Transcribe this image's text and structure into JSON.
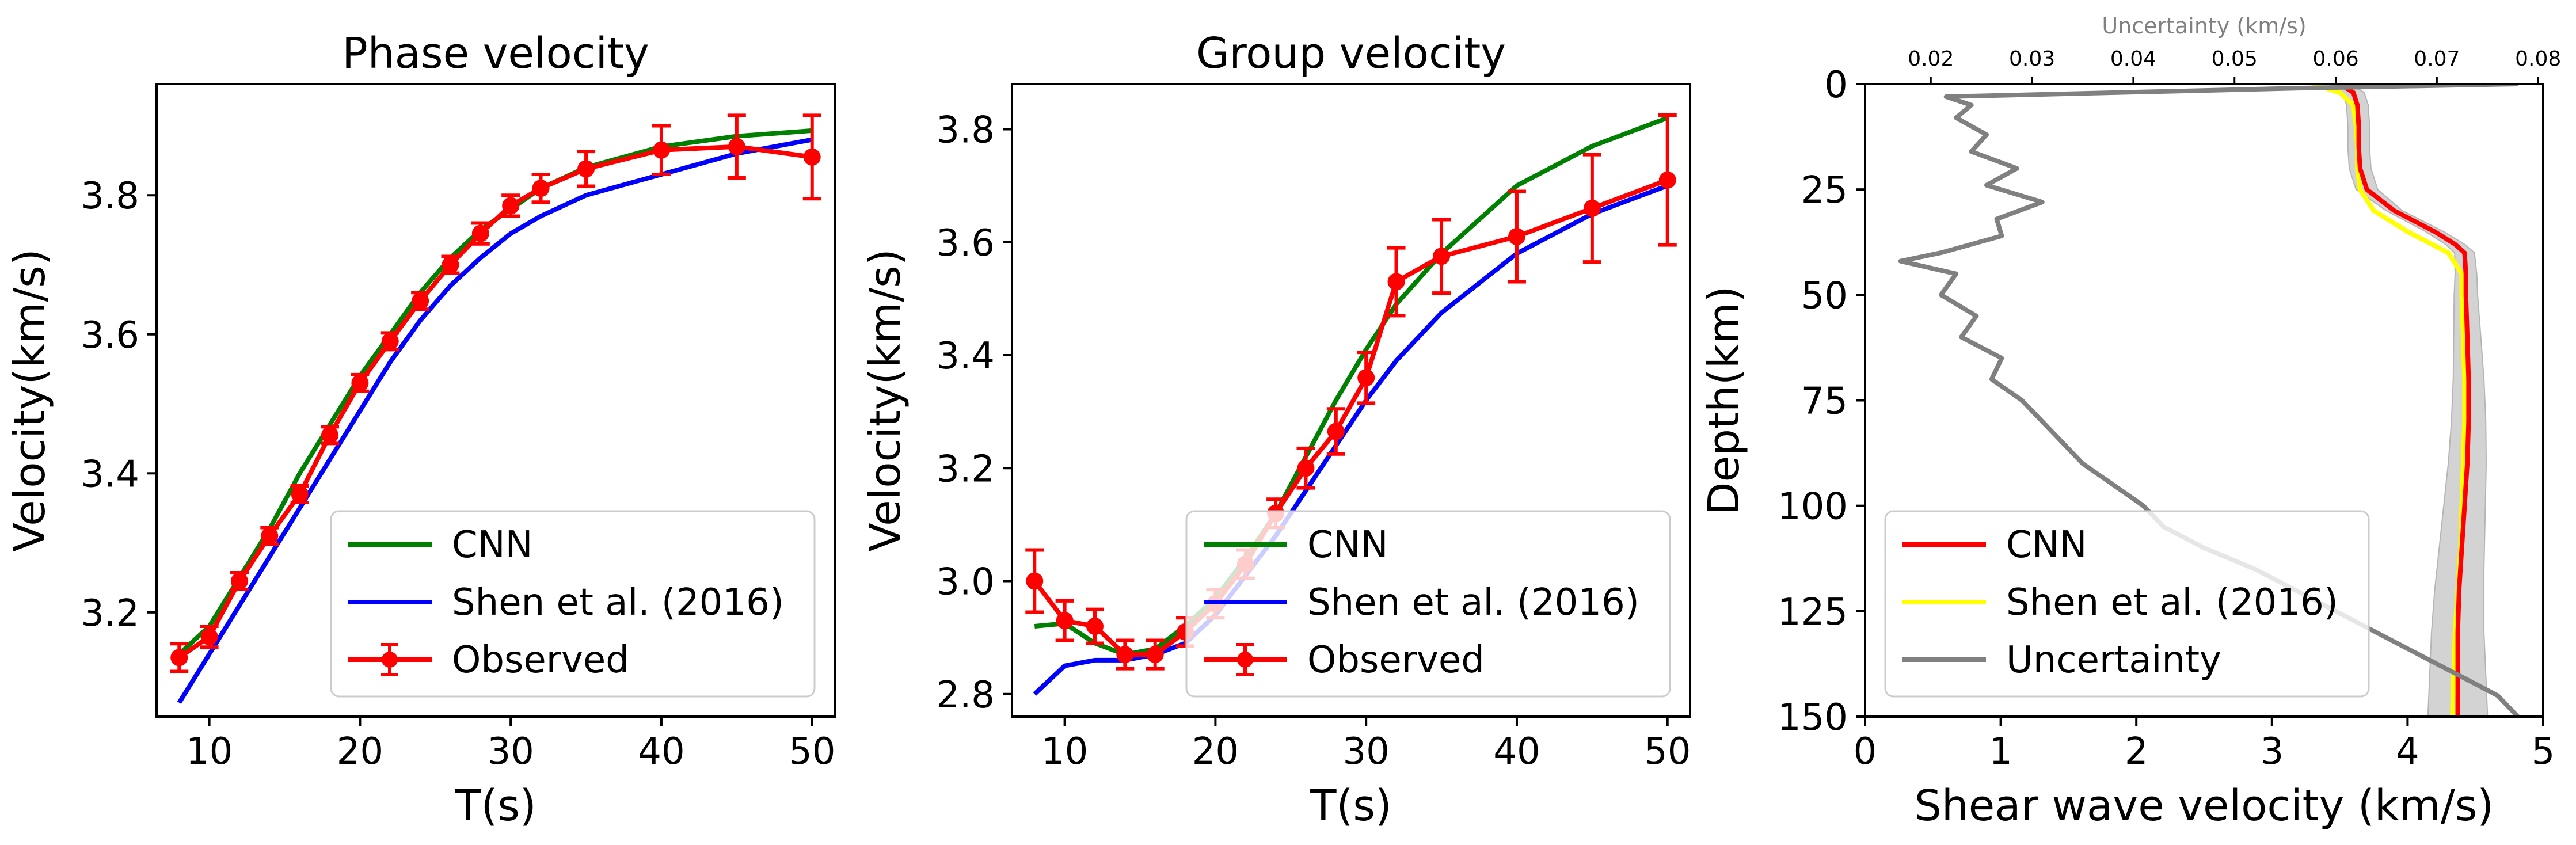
{
  "colors": {
    "cnn": "#008000",
    "shen_line": "#0000ff",
    "observed": "#ff0000",
    "cnn_profile": "#ff0000",
    "shen_profile": "#ffff00",
    "uncertainty": "#808080",
    "uncertainty_band": "#d3d3d3",
    "top_axis": "#808080"
  },
  "chart_data": [
    {
      "type": "line",
      "title": "Phase velocity",
      "xlabel": "T(s)",
      "ylabel": "Velocity(km/s)",
      "xlim": [
        6.5,
        51.5
      ],
      "ylim": [
        3.05,
        3.96
      ],
      "xticks": [
        10,
        20,
        30,
        40,
        50
      ],
      "yticks": [
        3.2,
        3.4,
        3.6,
        3.8
      ],
      "xtick_labels": [
        "10",
        "20",
        "30",
        "40",
        "50"
      ],
      "ytick_labels": [
        "3.2",
        "3.4",
        "3.6",
        "3.8"
      ],
      "grid": false,
      "legend_position": "lower-right",
      "series": [
        {
          "name": "CNN",
          "style": "line",
          "x": [
            8,
            10,
            12,
            14,
            16,
            18,
            20,
            22,
            24,
            26,
            28,
            30,
            32,
            35,
            40,
            45,
            50
          ],
          "y": [
            3.14,
            3.18,
            3.25,
            3.32,
            3.4,
            3.47,
            3.54,
            3.6,
            3.66,
            3.71,
            3.75,
            3.78,
            3.81,
            3.84,
            3.87,
            3.885,
            3.893
          ]
        },
        {
          "name": "Shen et al. (2016)",
          "style": "line",
          "x": [
            8,
            10,
            12,
            14,
            16,
            18,
            20,
            22,
            24,
            26,
            28,
            30,
            32,
            35,
            40,
            45,
            50
          ],
          "y": [
            3.07,
            3.14,
            3.21,
            3.28,
            3.35,
            3.42,
            3.49,
            3.56,
            3.62,
            3.67,
            3.71,
            3.745,
            3.77,
            3.8,
            3.83,
            3.86,
            3.88
          ]
        },
        {
          "name": "Observed",
          "style": "errorbar",
          "x": [
            8,
            10,
            12,
            14,
            16,
            18,
            20,
            22,
            24,
            26,
            28,
            30,
            32,
            35,
            40,
            45,
            50
          ],
          "y": [
            3.135,
            3.165,
            3.245,
            3.31,
            3.37,
            3.455,
            3.53,
            3.59,
            3.648,
            3.7,
            3.745,
            3.785,
            3.81,
            3.838,
            3.865,
            3.87,
            3.855
          ],
          "err": [
            0.02,
            0.015,
            0.012,
            0.012,
            0.012,
            0.012,
            0.012,
            0.012,
            0.012,
            0.012,
            0.015,
            0.015,
            0.02,
            0.025,
            0.035,
            0.045,
            0.06
          ]
        }
      ]
    },
    {
      "type": "line",
      "title": "Group velocity",
      "xlabel": "T(s)",
      "ylabel": "Velocity(km/s)",
      "xlim": [
        6.5,
        51.5
      ],
      "ylim": [
        2.76,
        3.88
      ],
      "xticks": [
        10,
        20,
        30,
        40,
        50
      ],
      "yticks": [
        2.8,
        3.0,
        3.2,
        3.4,
        3.6,
        3.8
      ],
      "xtick_labels": [
        "10",
        "20",
        "30",
        "40",
        "50"
      ],
      "ytick_labels": [
        "2.8",
        "3.0",
        "3.2",
        "3.4",
        "3.6",
        "3.8"
      ],
      "grid": false,
      "legend_position": "lower-right",
      "series": [
        {
          "name": "CNN",
          "style": "line",
          "x": [
            8,
            10,
            12,
            14,
            16,
            18,
            20,
            22,
            24,
            26,
            28,
            30,
            32,
            35,
            40,
            45,
            50
          ],
          "y": [
            2.92,
            2.925,
            2.89,
            2.87,
            2.88,
            2.92,
            2.97,
            3.04,
            3.12,
            3.22,
            3.32,
            3.41,
            3.49,
            3.58,
            3.7,
            3.77,
            3.82
          ]
        },
        {
          "name": "Shen et al. (2016)",
          "style": "line",
          "x": [
            8,
            10,
            12,
            14,
            16,
            18,
            20,
            22,
            24,
            26,
            28,
            30,
            32,
            35,
            40,
            45,
            50
          ],
          "y": [
            2.8,
            2.85,
            2.86,
            2.86,
            2.87,
            2.89,
            2.94,
            3.01,
            3.08,
            3.16,
            3.24,
            3.32,
            3.39,
            3.475,
            3.58,
            3.65,
            3.7
          ]
        },
        {
          "name": "Observed",
          "style": "errorbar",
          "x": [
            8,
            10,
            12,
            14,
            16,
            18,
            20,
            22,
            24,
            26,
            28,
            30,
            32,
            35,
            40,
            45,
            50
          ],
          "y": [
            3.0,
            2.93,
            2.92,
            2.87,
            2.87,
            2.91,
            2.96,
            3.03,
            3.12,
            3.2,
            3.265,
            3.36,
            3.53,
            3.575,
            3.61,
            3.66,
            3.71
          ],
          "err": [
            0.055,
            0.035,
            0.03,
            0.025,
            0.025,
            0.025,
            0.025,
            0.025,
            0.025,
            0.035,
            0.04,
            0.045,
            0.06,
            0.065,
            0.08,
            0.095,
            0.115
          ]
        }
      ]
    },
    {
      "type": "line",
      "title": "",
      "xlabel": "Shear wave velocity (km/s)",
      "ylabel": "Depth(km)",
      "x2label": "Uncertainty (km/s)",
      "xlim": [
        0,
        5
      ],
      "ylim": [
        150,
        0
      ],
      "x2lim": [
        0.0135,
        0.0805
      ],
      "xticks": [
        0,
        1,
        2,
        3,
        4,
        5
      ],
      "yticks": [
        0,
        25,
        50,
        75,
        100,
        125,
        150
      ],
      "x2ticks": [
        0.02,
        0.03,
        0.04,
        0.05,
        0.06,
        0.07,
        0.08
      ],
      "xtick_labels": [
        "0",
        "1",
        "2",
        "3",
        "4",
        "5"
      ],
      "ytick_labels": [
        "0",
        "25",
        "50",
        "75",
        "100",
        "125",
        "150"
      ],
      "x2tick_labels": [
        "0.02",
        "0.03",
        "0.04",
        "0.05",
        "0.06",
        "0.07",
        "0.08"
      ],
      "grid": false,
      "legend_position": "lower-left",
      "series": [
        {
          "name": "CNN",
          "style": "line",
          "depth": [
            0,
            2,
            5,
            10,
            15,
            20,
            25,
            30,
            35,
            38,
            40,
            45,
            50,
            60,
            70,
            80,
            90,
            100,
            110,
            120,
            130,
            140,
            150
          ],
          "vs": [
            3.5,
            3.6,
            3.63,
            3.64,
            3.64,
            3.65,
            3.7,
            3.9,
            4.2,
            4.35,
            4.42,
            4.43,
            4.43,
            4.44,
            4.45,
            4.45,
            4.44,
            4.42,
            4.4,
            4.38,
            4.37,
            4.37,
            4.37
          ]
        },
        {
          "name": "Shen et al. (2016)",
          "style": "line",
          "depth": [
            0,
            2,
            5,
            10,
            15,
            20,
            25,
            30,
            35,
            40,
            45,
            50,
            60,
            70,
            80,
            90,
            100,
            110,
            120,
            130,
            140,
            150
          ],
          "vs": [
            3.3,
            3.5,
            3.6,
            3.62,
            3.63,
            3.63,
            3.65,
            3.75,
            4.0,
            4.3,
            4.4,
            4.4,
            4.41,
            4.42,
            4.42,
            4.41,
            4.4,
            4.39,
            4.37,
            4.35,
            4.34,
            4.33
          ]
        },
        {
          "name": "Uncertainty",
          "style": "line",
          "depth": [
            0,
            1,
            3,
            5,
            8,
            12,
            16,
            20,
            24,
            28,
            32,
            36,
            40,
            42,
            45,
            50,
            55,
            60,
            65,
            70,
            75,
            80,
            85,
            90,
            95,
            100,
            105,
            110,
            115,
            120,
            125,
            130,
            135,
            140,
            145,
            150
          ],
          "uncertainty": [
            0.078,
            0.056,
            0.0215,
            0.024,
            0.0225,
            0.0255,
            0.024,
            0.0285,
            0.0255,
            0.031,
            0.0265,
            0.027,
            0.021,
            0.017,
            0.0225,
            0.021,
            0.0245,
            0.023,
            0.027,
            0.026,
            0.029,
            0.031,
            0.033,
            0.035,
            0.038,
            0.041,
            0.043,
            0.047,
            0.052,
            0.056,
            0.06,
            0.064,
            0.068,
            0.072,
            0.076,
            0.078
          ]
        }
      ]
    }
  ]
}
